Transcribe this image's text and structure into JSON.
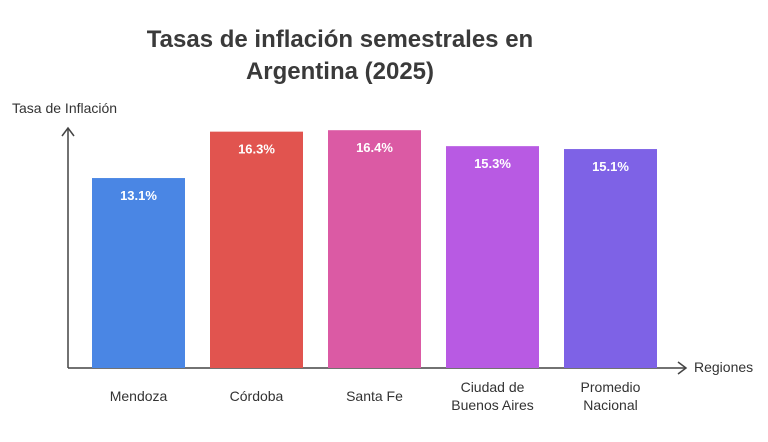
{
  "chart_data": {
    "type": "bar",
    "title_lines": [
      "Tasas de inflación semestrales en",
      "Argentina (2025)"
    ],
    "ylabel": "Tasa de Inflación",
    "xlabel": "Regiones",
    "categories": [
      [
        "Mendoza"
      ],
      [
        "Córdoba"
      ],
      [
        "Santa Fe"
      ],
      [
        "Ciudad de",
        "Buenos Aires"
      ],
      [
        "Promedio",
        "Nacional"
      ]
    ],
    "values": [
      13.1,
      16.3,
      16.4,
      15.3,
      15.1
    ],
    "value_labels": [
      "13.1%",
      "16.3%",
      "16.4%",
      "15.3%",
      "15.1%"
    ],
    "colors": [
      "#4a86e4",
      "#e1544f",
      "#db5aa4",
      "#b85ae3",
      "#7e62e6"
    ],
    "ylim": [
      0,
      20
    ],
    "grid": false,
    "legend": "none"
  }
}
